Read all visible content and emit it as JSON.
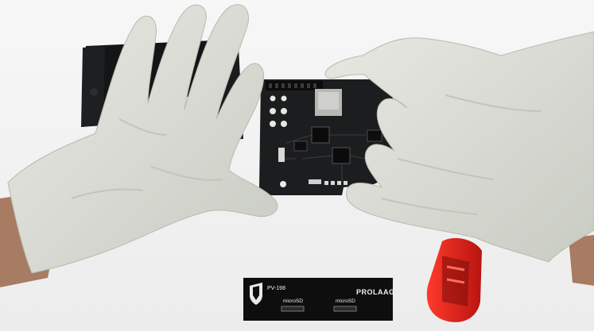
{
  "scene": {
    "description_label": "Gloved hands assembling a circuit board into a black enclosure",
    "colors": {
      "background": "#f3f3f3",
      "glove": "#dcded6",
      "glove_shadow": "#b9bcb3",
      "pcb": "#1b1d1f",
      "enclosure": "#151617",
      "skin": "#a87b63",
      "screwdriver_handle": "#e0241c",
      "panel": "#0e0e0e"
    }
  },
  "front_panel": {
    "model": "PV-198",
    "port_left": "microSD",
    "port_right": "microSD",
    "brand": "PROLAAG"
  }
}
